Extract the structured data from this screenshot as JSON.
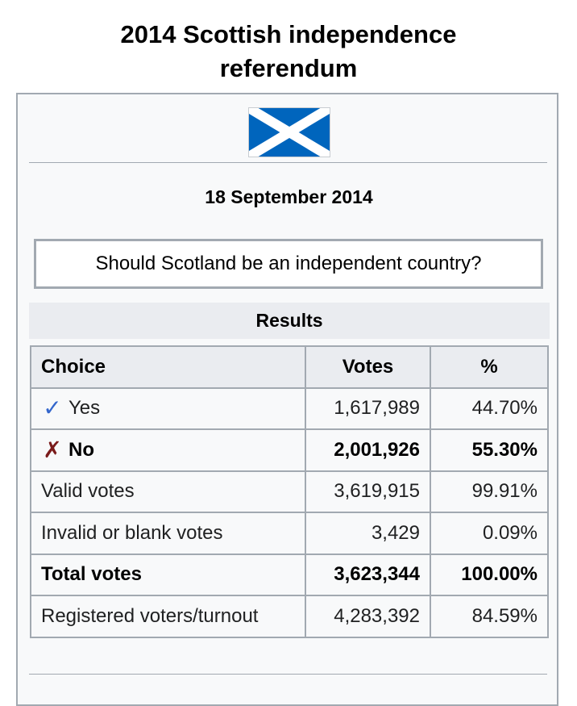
{
  "page": {
    "title_line1": "2014 Scottish independence",
    "title_line2": "referendum"
  },
  "infobox": {
    "flag": {
      "icon": "scotland-flag-icon",
      "field_color": "#0065bd",
      "saltire_color": "#ffffff"
    },
    "date": "18 September 2014",
    "question": "Should Scotland be an independent country?",
    "results_header": "Results",
    "table": {
      "headers": {
        "choice": "Choice",
        "votes": "Votes",
        "percent": "%"
      },
      "rows": [
        {
          "mark": "✓",
          "choice": "Yes",
          "votes": "1,617,989",
          "percent": "44.70%"
        },
        {
          "mark": "✗",
          "choice": "No",
          "votes": "2,001,926",
          "percent": "55.30%"
        },
        {
          "choice": "Valid votes",
          "votes": "3,619,915",
          "percent": "99.91%"
        },
        {
          "choice": "Invalid or blank votes",
          "votes": "3,429",
          "percent": "0.09%"
        },
        {
          "choice": "Total votes",
          "votes": "3,623,344",
          "percent": "100.00%"
        },
        {
          "choice": "Registered voters/turnout",
          "votes": "4,283,392",
          "percent": "84.59%"
        }
      ]
    }
  },
  "colors": {
    "yes_mark": "#3366cc",
    "no_mark": "#7a1b1b",
    "border": "#a2a9b1",
    "header_bg": "#eaecf0"
  }
}
